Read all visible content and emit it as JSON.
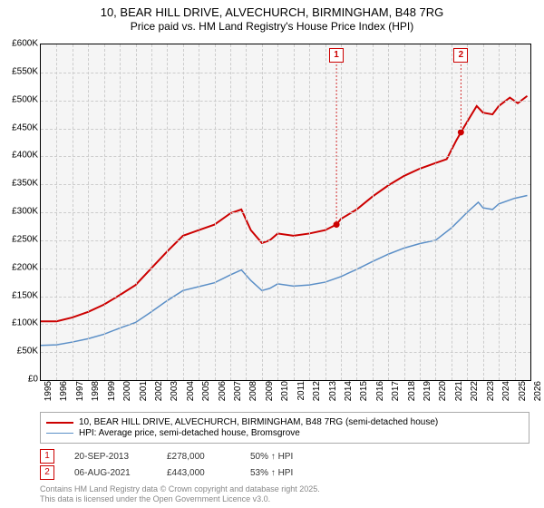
{
  "title": {
    "line1": "10, BEAR HILL DRIVE, ALVECHURCH, BIRMINGHAM, B48 7RG",
    "line2": "Price paid vs. HM Land Registry's House Price Index (HPI)"
  },
  "chart": {
    "type": "line",
    "background_color": "#f5f5f5",
    "grid_color": "#cccccc",
    "x": {
      "min": 1995,
      "max": 2026,
      "tick_step": 1,
      "label_rotation": -90
    },
    "y": {
      "min": 0,
      "max": 600000,
      "tick_step": 50000,
      "prefix": "£",
      "k_suffix": true
    },
    "series": [
      {
        "name": "property",
        "label": "10, BEAR HILL DRIVE, ALVECHURCH, BIRMINGHAM, B48 7RG (semi-detached house)",
        "color": "#cc0000",
        "width": 2,
        "points": [
          [
            1995,
            105000
          ],
          [
            1996,
            105000
          ],
          [
            1997,
            112000
          ],
          [
            1998,
            122000
          ],
          [
            1999,
            135000
          ],
          [
            2000,
            152000
          ],
          [
            2001,
            170000
          ],
          [
            2002,
            200000
          ],
          [
            2003,
            230000
          ],
          [
            2004,
            258000
          ],
          [
            2005,
            268000
          ],
          [
            2006,
            278000
          ],
          [
            2007,
            298000
          ],
          [
            2007.7,
            305000
          ],
          [
            2008.3,
            268000
          ],
          [
            2009,
            245000
          ],
          [
            2009.5,
            250000
          ],
          [
            2010,
            262000
          ],
          [
            2011,
            258000
          ],
          [
            2012,
            262000
          ],
          [
            2013,
            268000
          ],
          [
            2013.72,
            278000
          ],
          [
            2014,
            288000
          ],
          [
            2015,
            305000
          ],
          [
            2016,
            328000
          ],
          [
            2017,
            348000
          ],
          [
            2018,
            365000
          ],
          [
            2019,
            378000
          ],
          [
            2020,
            388000
          ],
          [
            2020.7,
            395000
          ],
          [
            2021.3,
            428000
          ],
          [
            2021.6,
            443000
          ],
          [
            2022,
            462000
          ],
          [
            2022.6,
            490000
          ],
          [
            2023,
            478000
          ],
          [
            2023.6,
            475000
          ],
          [
            2024,
            490000
          ],
          [
            2024.7,
            505000
          ],
          [
            2025.2,
            495000
          ],
          [
            2025.8,
            508000
          ]
        ]
      },
      {
        "name": "hpi",
        "label": "HPI: Average price, semi-detached house, Bromsgrove",
        "color": "#5b8fc7",
        "width": 1.5,
        "points": [
          [
            1995,
            62000
          ],
          [
            1996,
            63000
          ],
          [
            1997,
            68000
          ],
          [
            1998,
            74000
          ],
          [
            1999,
            82000
          ],
          [
            2000,
            93000
          ],
          [
            2001,
            103000
          ],
          [
            2002,
            122000
          ],
          [
            2003,
            142000
          ],
          [
            2004,
            160000
          ],
          [
            2005,
            167000
          ],
          [
            2006,
            174000
          ],
          [
            2007,
            188000
          ],
          [
            2007.7,
            197000
          ],
          [
            2008.3,
            178000
          ],
          [
            2009,
            160000
          ],
          [
            2009.5,
            164000
          ],
          [
            2010,
            172000
          ],
          [
            2011,
            168000
          ],
          [
            2012,
            170000
          ],
          [
            2013,
            175000
          ],
          [
            2014,
            185000
          ],
          [
            2015,
            198000
          ],
          [
            2016,
            212000
          ],
          [
            2017,
            225000
          ],
          [
            2018,
            236000
          ],
          [
            2019,
            244000
          ],
          [
            2020,
            250000
          ],
          [
            2021,
            272000
          ],
          [
            2022,
            300000
          ],
          [
            2022.7,
            318000
          ],
          [
            2023,
            308000
          ],
          [
            2023.6,
            305000
          ],
          [
            2024,
            315000
          ],
          [
            2025,
            325000
          ],
          [
            2025.8,
            330000
          ]
        ]
      }
    ],
    "sale_markers": [
      {
        "n": "1",
        "x": 2013.72,
        "y": 278000,
        "color": "#cc0000"
      },
      {
        "n": "2",
        "x": 2021.6,
        "y": 443000,
        "color": "#cc0000"
      }
    ]
  },
  "legend": {
    "items": [
      {
        "color": "#cc0000",
        "text": "10, BEAR HILL DRIVE, ALVECHURCH, BIRMINGHAM, B48 7RG (semi-detached house)"
      },
      {
        "color": "#5b8fc7",
        "text": "HPI: Average price, semi-detached house, Bromsgrove"
      }
    ]
  },
  "sales": [
    {
      "n": "1",
      "color": "#cc0000",
      "date": "20-SEP-2013",
      "price": "£278,000",
      "delta": "50% ↑ HPI"
    },
    {
      "n": "2",
      "color": "#cc0000",
      "date": "06-AUG-2021",
      "price": "£443,000",
      "delta": "53% ↑ HPI"
    }
  ],
  "footer": {
    "line1": "Contains HM Land Registry data © Crown copyright and database right 2025.",
    "line2": "This data is licensed under the Open Government Licence v3.0."
  }
}
